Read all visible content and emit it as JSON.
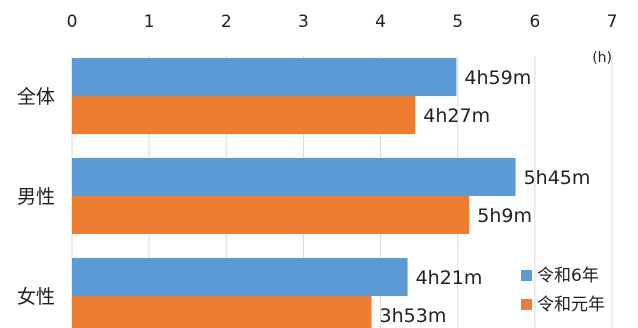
{
  "chart_data": {
    "type": "bar",
    "orientation": "horizontal",
    "axis_unit": "(h)",
    "xlim": [
      0,
      7
    ],
    "x_ticks": [
      "0",
      "1",
      "2",
      "3",
      "4",
      "5",
      "6",
      "7"
    ],
    "x_axis_position": "top",
    "grid": true,
    "legend_position": "bottom-right",
    "categories": [
      "全体",
      "男性",
      "女性"
    ],
    "series": [
      {
        "name": "令和6年",
        "color": "#5b9bd5",
        "values": [
          4.983,
          5.75,
          4.35
        ],
        "labels": [
          "4h59m",
          "5h45m",
          "4h21m"
        ]
      },
      {
        "name": "令和元年",
        "color": "#ed7d31",
        "values": [
          4.45,
          5.15,
          3.883
        ],
        "labels": [
          "4h27m",
          "5h9m",
          "3h53m"
        ]
      }
    ]
  }
}
